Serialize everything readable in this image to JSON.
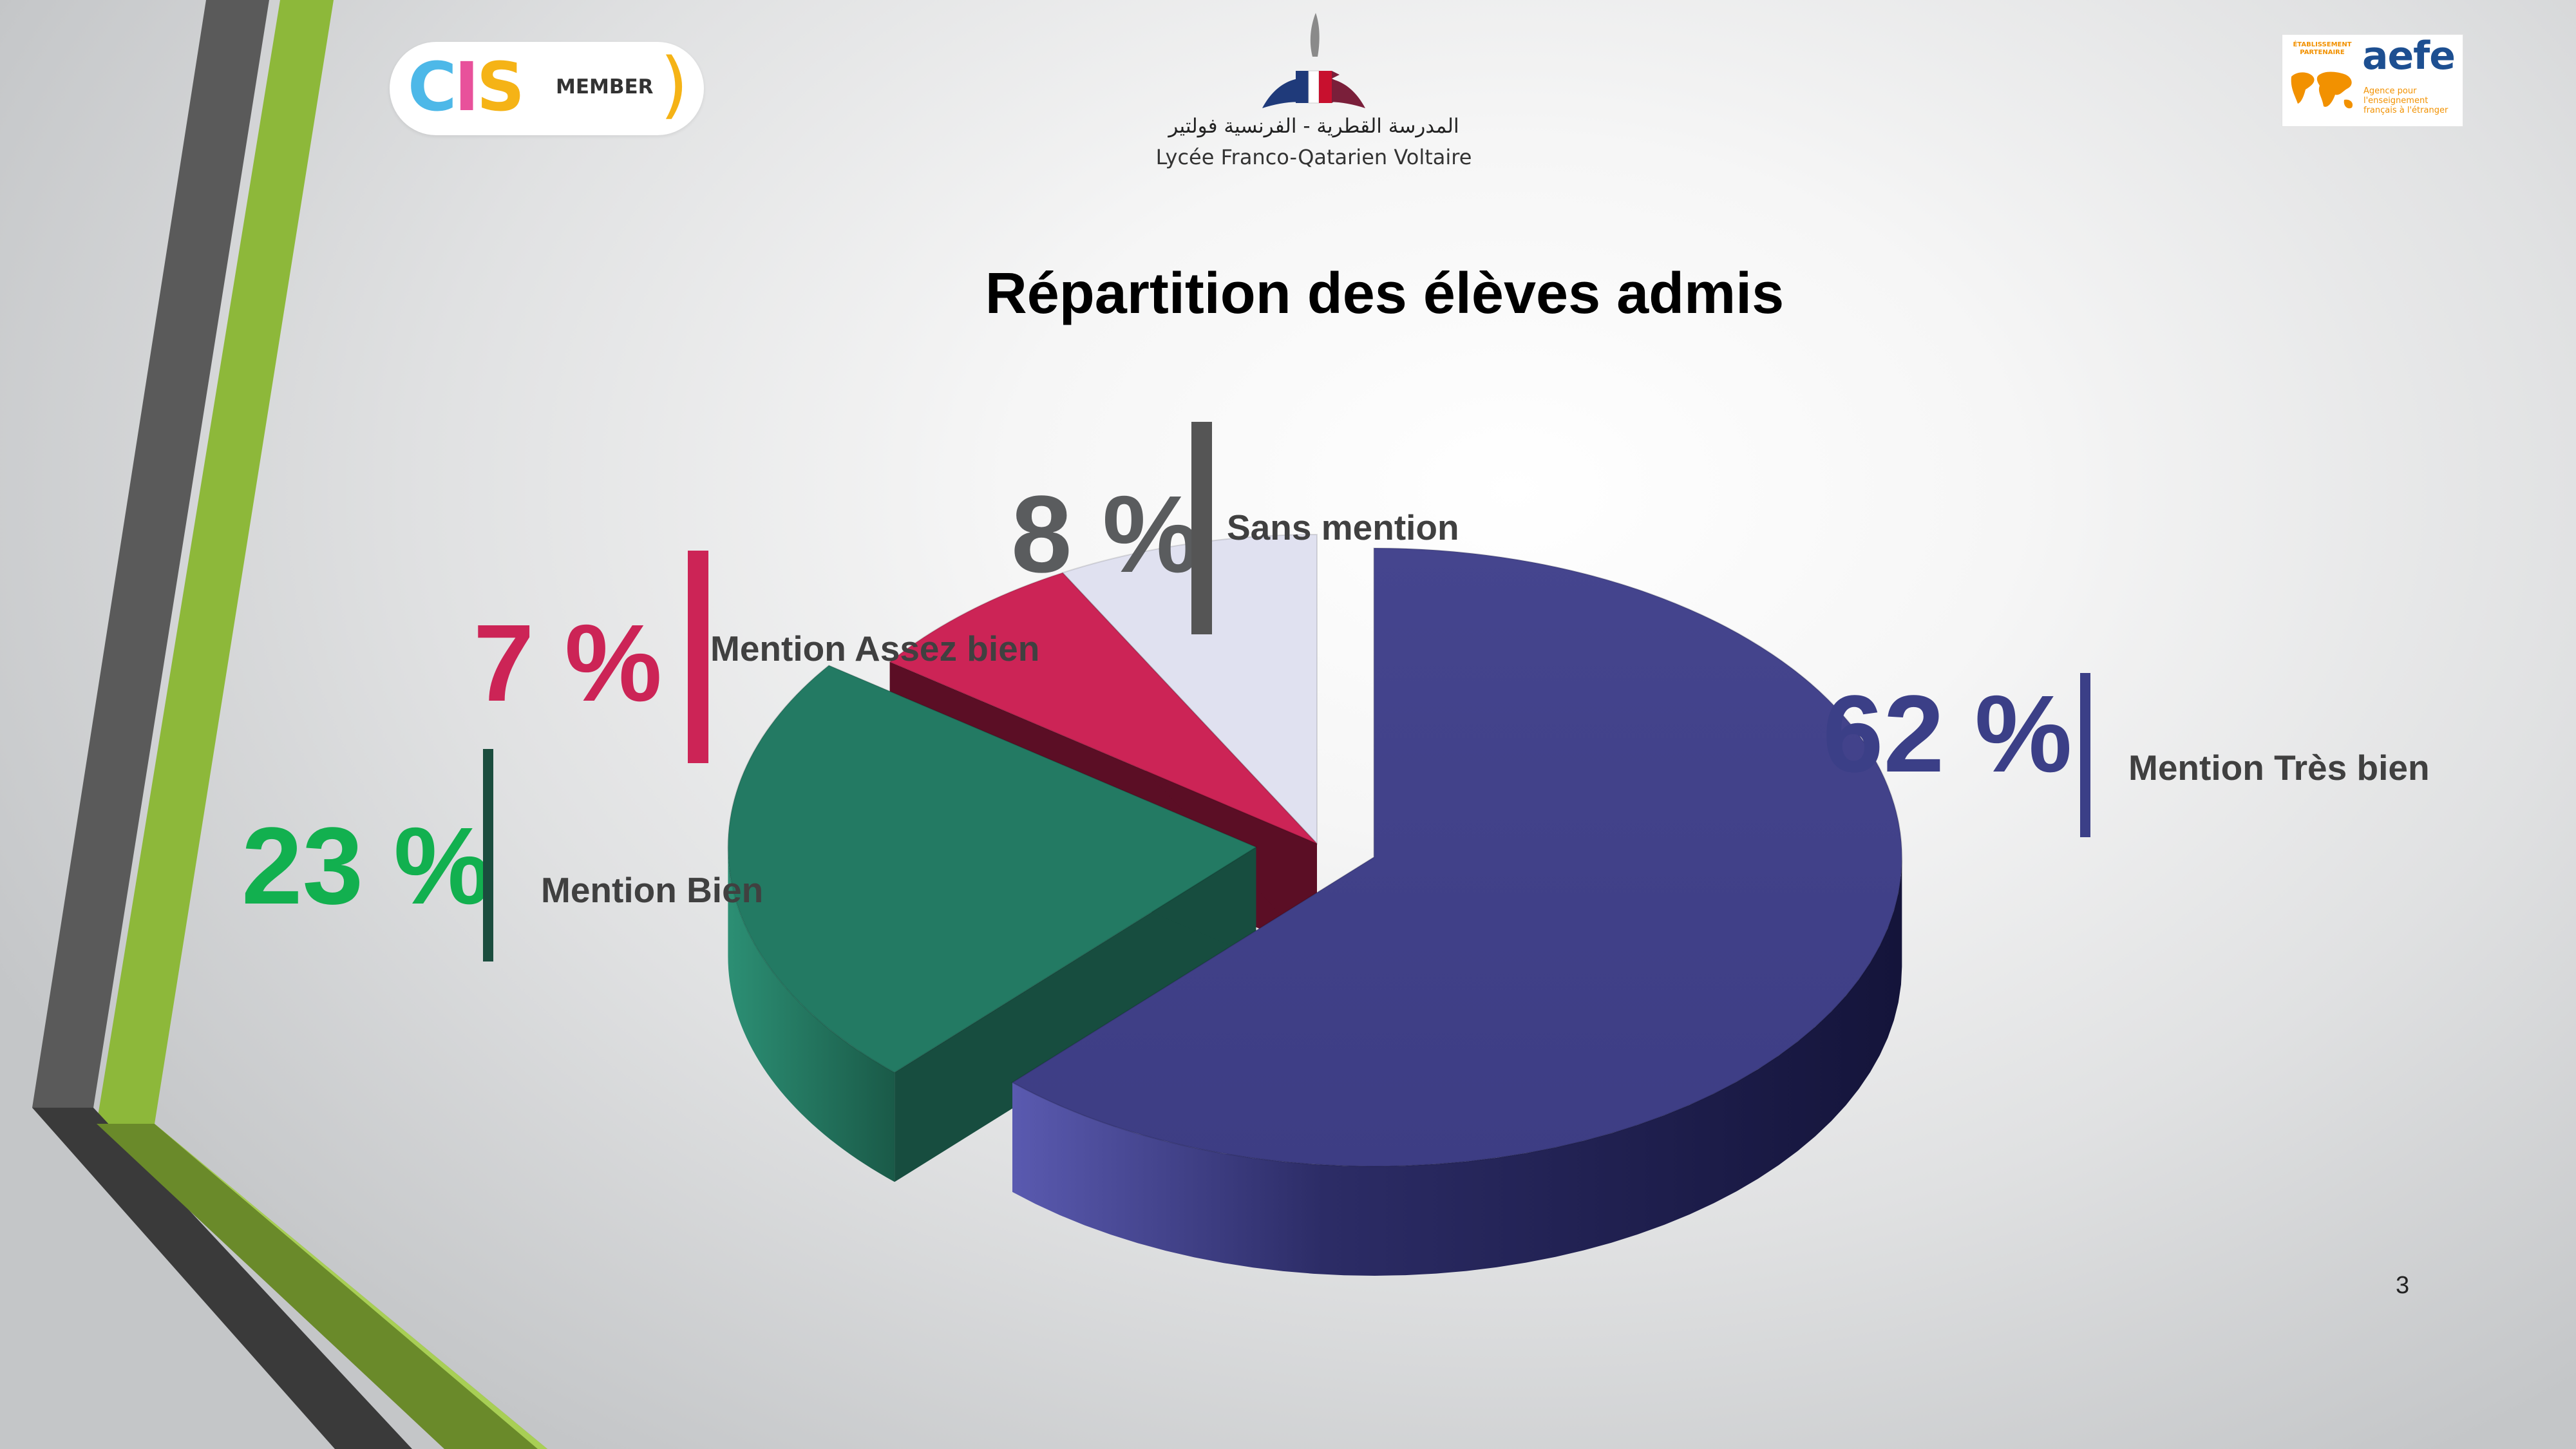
{
  "logos": {
    "cis": {
      "letters": [
        "C",
        "I",
        "S"
      ],
      "letter_colors": [
        "#4db8e8",
        "#e8519b",
        "#f5b316"
      ],
      "member": "MEMBER",
      "paren": ")"
    },
    "school": {
      "name_ar": "المدرسة القطرية - الفرنسية فولتير",
      "name_fr": "Lycée Franco-Qatarien Voltaire"
    },
    "aefe": {
      "badge": "ÉTABLISSEMENT PARTENAIRE",
      "name": "aefe",
      "subtitle": "Agence pour l'enseignement français à l'étranger"
    }
  },
  "chart_data": {
    "type": "pie",
    "title": "Répartition des élèves admis",
    "three_d": true,
    "slices": [
      {
        "label": "Mention Très bien",
        "value": 62,
        "display": "62 %",
        "color": "#41418a",
        "side_color": "#2a2a62",
        "exploded": true
      },
      {
        "label": "Mention Bien",
        "value": 23,
        "display": "23 %",
        "color": "#237a63",
        "side_color": "#174d3f",
        "exploded": true
      },
      {
        "label": "Mention Assez bien",
        "value": 7,
        "display": "7 %",
        "color": "#cc2456",
        "side_color": "#5b0e25",
        "exploded": false
      },
      {
        "label": "Sans mention",
        "value": 8,
        "display": "8 %",
        "color": "#e0e1f0",
        "side_color": "#5c5c62",
        "exploded": false
      }
    ],
    "label_colors": {
      "Mention Très bien": "#3b3f87",
      "Mention Bien": "#12b04f",
      "Mention Assez bien": "#cc2456",
      "Sans mention": "#5a5c5e"
    },
    "bar_colors": {
      "Mention Très bien": "#3b3f87",
      "Mention Bien": "#1b4d3e",
      "Mention Assez bien": "#cc2456",
      "Sans mention": "#555555"
    }
  },
  "page_number": "3"
}
